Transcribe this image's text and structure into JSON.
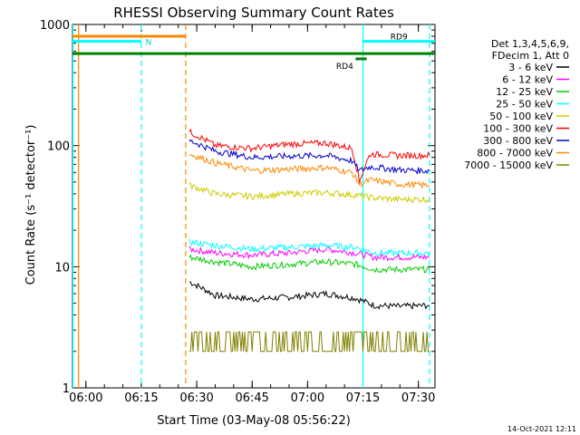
{
  "chart_data": {
    "type": "line",
    "title": "RHESSI Observing Summary Count Rates",
    "xlabel": "Start Time (03-May-08 05:56:22)",
    "ylabel": "Count Rate (s⁻¹ detector⁻¹)",
    "ylog": true,
    "ylim": [
      1,
      1000
    ],
    "xlim": [
      "05:56:22",
      "07:34:30"
    ],
    "yticks": [
      1,
      10,
      100,
      1000
    ],
    "xticks": [
      "06:00",
      "06:15",
      "06:30",
      "06:45",
      "07:00",
      "07:15",
      "07:30"
    ],
    "legend_header": [
      "Det 1,3,4,5,6,9,",
      "FDecim 1, Att 0"
    ],
    "legend_position": "right",
    "footer_date": "14-Oct-2021 12:11",
    "series": [
      {
        "name": "3 - 6 keV",
        "color": "#000000",
        "x": [
          "06:28",
          "06:35",
          "06:45",
          "06:55",
          "07:05",
          "07:13",
          "07:18",
          "07:25",
          "07:33"
        ],
        "values": [
          7.5,
          5.8,
          5.4,
          5.6,
          6.0,
          5.5,
          4.8,
          4.7,
          4.8
        ]
      },
      {
        "name": "6 - 12 keV",
        "color": "#ff00ff",
        "x": [
          "06:28",
          "06:35",
          "06:45",
          "06:55",
          "07:05",
          "07:13",
          "07:18",
          "07:25",
          "07:33"
        ],
        "values": [
          14,
          13,
          12.5,
          13,
          14,
          13,
          12,
          12,
          12
        ]
      },
      {
        "name": "12 - 25 keV",
        "color": "#00cc00",
        "x": [
          "06:28",
          "06:35",
          "06:45",
          "06:55",
          "07:05",
          "07:13",
          "07:18",
          "07:25",
          "07:33"
        ],
        "values": [
          12,
          11,
          10,
          10.5,
          11,
          10.5,
          9.5,
          9.5,
          9.5
        ]
      },
      {
        "name": "25 - 50 keV",
        "color": "#00ffff",
        "x": [
          "06:28",
          "06:35",
          "06:45",
          "06:55",
          "07:05",
          "07:13",
          "07:18",
          "07:25",
          "07:33"
        ],
        "values": [
          16,
          15,
          14,
          14.5,
          15,
          14.5,
          13,
          13,
          13
        ]
      },
      {
        "name": "50 - 100 keV",
        "color": "#cccc00",
        "x": [
          "06:28",
          "06:35",
          "06:45",
          "06:55",
          "07:05",
          "07:13",
          "07:18",
          "07:25",
          "07:33"
        ],
        "values": [
          47,
          40,
          38,
          40,
          41,
          39,
          37,
          36,
          36
        ]
      },
      {
        "name": "100 - 300 keV",
        "color": "#ff0000",
        "x": [
          "06:28",
          "06:35",
          "06:45",
          "06:55",
          "07:05",
          "07:12",
          "07:14",
          "07:17",
          "07:25",
          "07:33"
        ],
        "values": [
          130,
          100,
          95,
          103,
          105,
          95,
          50,
          85,
          83,
          83
        ]
      },
      {
        "name": "300 - 800 keV",
        "color": "#0000cc",
        "x": [
          "06:28",
          "06:35",
          "06:45",
          "06:55",
          "07:05",
          "07:12",
          "07:14",
          "07:17",
          "07:25",
          "07:33"
        ],
        "values": [
          110,
          90,
          80,
          82,
          83,
          75,
          62,
          67,
          63,
          62
        ]
      },
      {
        "name": "800 - 7000 keV",
        "color": "#ff8800",
        "x": [
          "06:28",
          "06:35",
          "06:45",
          "06:55",
          "07:05",
          "07:12",
          "07:14",
          "07:17",
          "07:25",
          "07:33"
        ],
        "values": [
          85,
          72,
          62,
          64,
          66,
          60,
          48,
          52,
          48,
          47
        ]
      },
      {
        "name": "7000 - 15000 keV",
        "color": "#808000",
        "x": [
          "06:28",
          "06:45",
          "07:00",
          "07:15",
          "07:33"
        ],
        "values": [
          2.0,
          2.0,
          2.0,
          2.0,
          2.0
        ]
      }
    ],
    "annotations": [
      {
        "label": "N",
        "color": "#00ffff",
        "x_start": "05:56:22",
        "x_end": "06:15",
        "y": 725
      },
      {
        "label": "",
        "color": "#ff8800",
        "x_start": "05:56:22",
        "x_end": "06:27",
        "y": 800
      },
      {
        "label": "",
        "color": "#008000",
        "x_start": "05:56:22",
        "x_end": "07:34:30",
        "y": 575
      },
      {
        "label": "RD9",
        "color": "#00ffff",
        "x_start": "07:15",
        "x_end": "07:34:30",
        "y": 725
      },
      {
        "label": "RD4",
        "color": "#008000",
        "x_start": "07:13",
        "x_end": "07:16",
        "y": 520
      }
    ],
    "vlines": [
      {
        "x": "05:56:30",
        "color": "#00ffff",
        "style": "solid"
      },
      {
        "x": "05:58",
        "color": "#ff8800",
        "style": "solid"
      },
      {
        "x": "06:15",
        "color": "#00ffff",
        "style": "dashed"
      },
      {
        "x": "06:27",
        "color": "#ff8800",
        "style": "dashed"
      },
      {
        "x": "07:15",
        "color": "#00ffff",
        "style": "solid"
      },
      {
        "x": "07:33",
        "color": "#00ffff",
        "style": "dashed"
      }
    ]
  }
}
